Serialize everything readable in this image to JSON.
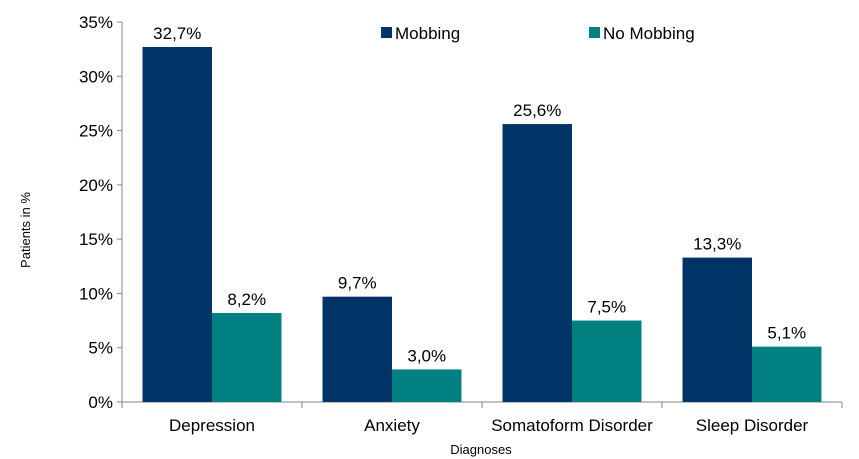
{
  "chart_data": {
    "type": "bar",
    "categories": [
      "Depression",
      "Anxiety",
      "Somatoform Disorder",
      "Sleep Disorder"
    ],
    "series": [
      {
        "name": "Mobbing",
        "color": "#003366",
        "values": [
          32.7,
          9.7,
          25.6,
          13.3
        ],
        "labels": [
          "32,7%",
          "9,7%",
          "25,6%",
          "13,3%"
        ]
      },
      {
        "name": "No Mobbing",
        "color": "#008080",
        "values": [
          8.2,
          3.0,
          7.5,
          5.1
        ],
        "labels": [
          "8,2%",
          "3,0%",
          "7,5%",
          "5,1%"
        ]
      }
    ],
    "xlabel": "Diagnoses",
    "ylabel": "Patients in %",
    "ylim": [
      0,
      35
    ],
    "yticks": [
      "0%",
      "5%",
      "10%",
      "15%",
      "20%",
      "25%",
      "30%",
      "35%"
    ],
    "grid": false,
    "legend_position": "top-center"
  }
}
